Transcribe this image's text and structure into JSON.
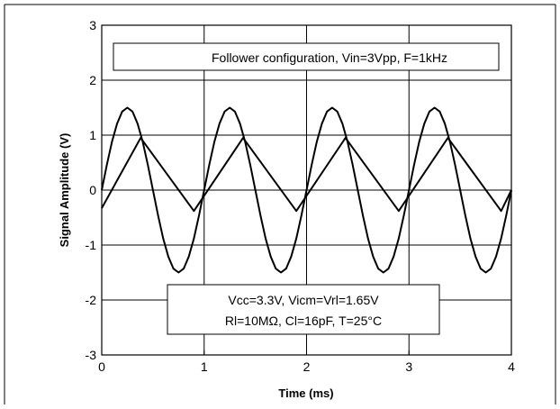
{
  "chart_data": {
    "type": "line",
    "title": "",
    "xlabel": "Time (ms)",
    "ylabel": "Signal Amplitude (V)",
    "xlim": [
      0,
      4
    ],
    "ylim": [
      -3,
      3
    ],
    "xticks": [
      "0",
      "1",
      "2",
      "3",
      "4"
    ],
    "yticks": [
      "3",
      "2",
      "1",
      "0",
      "-1",
      "-2",
      "-3"
    ],
    "grid": true,
    "series": [
      {
        "x": [
          0,
          0.05,
          0.1,
          0.15,
          0.2,
          0.25,
          0.3,
          0.35,
          0.4,
          0.45,
          0.5,
          0.55,
          0.6,
          0.65,
          0.7,
          0.75,
          0.8,
          0.85,
          0.9,
          0.95,
          1.0,
          1.05,
          1.1,
          1.15,
          1.2,
          1.25,
          1.3,
          1.35,
          1.4,
          1.45,
          1.5,
          1.55,
          1.6,
          1.65,
          1.7,
          1.75,
          1.8,
          1.85,
          1.9,
          1.95,
          2.0,
          2.05,
          2.1,
          2.15,
          2.2,
          2.25,
          2.3,
          2.35,
          2.4,
          2.45,
          2.5,
          2.55,
          2.6,
          2.65,
          2.7,
          2.75,
          2.8,
          2.85,
          2.9,
          2.95,
          3.0,
          3.05,
          3.1,
          3.15,
          3.2,
          3.25,
          3.3,
          3.35,
          3.4,
          3.45,
          3.5,
          3.55,
          3.6,
          3.65,
          3.7,
          3.75,
          3.8,
          3.85,
          3.9,
          3.95,
          4.0
        ],
        "values": [
          0.0,
          0.46,
          0.88,
          1.21,
          1.43,
          1.5,
          1.43,
          1.21,
          0.88,
          0.46,
          0.0,
          -0.46,
          -0.88,
          -1.21,
          -1.43,
          -1.5,
          -1.43,
          -1.21,
          -0.88,
          -0.46,
          0.0,
          0.46,
          0.88,
          1.21,
          1.43,
          1.5,
          1.43,
          1.21,
          0.88,
          0.46,
          0.0,
          -0.46,
          -0.88,
          -1.21,
          -1.43,
          -1.5,
          -1.43,
          -1.21,
          -0.88,
          -0.46,
          0.0,
          0.46,
          0.88,
          1.21,
          1.43,
          1.5,
          1.43,
          1.21,
          0.88,
          0.46,
          0.0,
          -0.46,
          -0.88,
          -1.21,
          -1.43,
          -1.5,
          -1.43,
          -1.21,
          -0.88,
          -0.46,
          0.0,
          0.46,
          0.88,
          1.21,
          1.43,
          1.5,
          1.43,
          1.21,
          0.88,
          0.46,
          0.0,
          -0.46,
          -0.88,
          -1.21,
          -1.43,
          -1.5,
          -1.43,
          -1.21,
          -0.88,
          -0.46,
          0.0
        ]
      },
      {
        "x": [
          0,
          0.38,
          0.9,
          1.38,
          1.9,
          2.38,
          2.9,
          3.38,
          3.9,
          4.0
        ],
        "values": [
          -0.33,
          0.95,
          -0.38,
          0.95,
          -0.38,
          0.95,
          -0.38,
          0.95,
          -0.38,
          0.0
        ]
      }
    ],
    "annotations": [
      "Follower configuration, Vin=3Vpp, F=1kHz",
      "Vcc=3.3V, Vicm=Vrl=1.65V",
      "Rl=10MΩ, Cl=16pF, T=25°C"
    ]
  }
}
